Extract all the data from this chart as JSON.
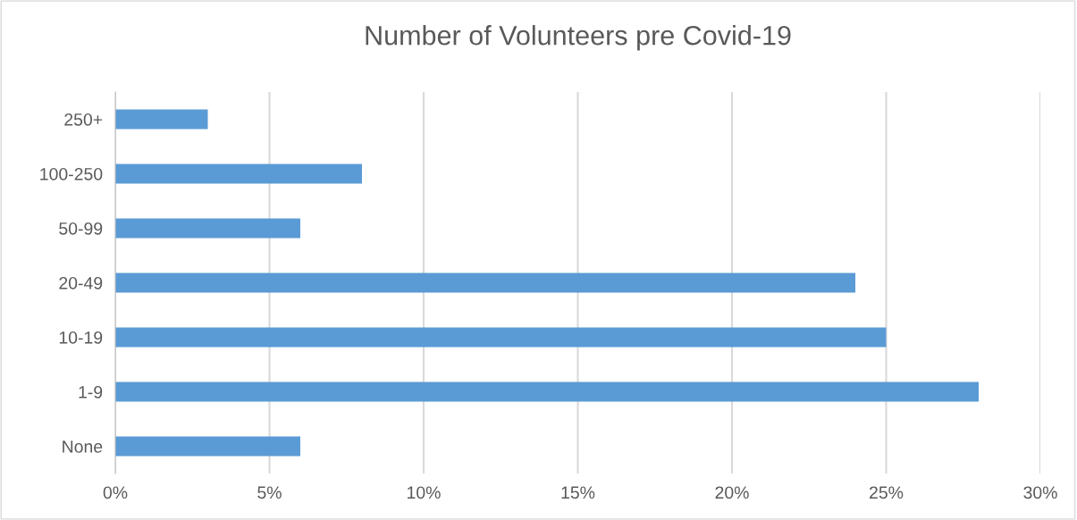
{
  "chart_data": {
    "type": "bar",
    "orientation": "horizontal",
    "title": "Number of Volunteers pre Covid-19",
    "categories": [
      "250+",
      "100-250",
      "50-99",
      "20-49",
      "10-19",
      "1-9",
      "None"
    ],
    "values": [
      3,
      8,
      6,
      24,
      25,
      28,
      6
    ],
    "color": "#5b9bd5",
    "xlim": [
      0,
      30
    ],
    "xticks": [
      {
        "value": 0,
        "label": "0%"
      },
      {
        "value": 5,
        "label": "5%"
      },
      {
        "value": 10,
        "label": "10%"
      },
      {
        "value": 15,
        "label": "15%"
      },
      {
        "value": 20,
        "label": "20%"
      },
      {
        "value": 25,
        "label": "25%"
      },
      {
        "value": 30,
        "label": "30%"
      }
    ],
    "grid": "x"
  }
}
